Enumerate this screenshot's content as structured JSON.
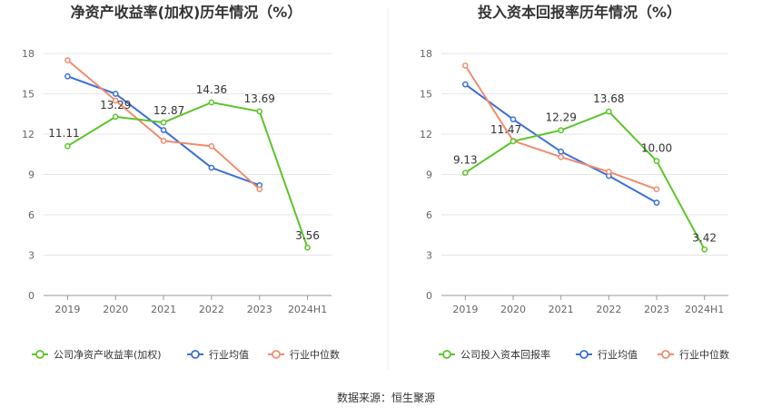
{
  "source": "数据来源：恒生聚源",
  "colors": {
    "company": "#5cc42a",
    "avg": "#3b6fd8",
    "median": "#f08c6e"
  },
  "chart_data": [
    {
      "type": "line",
      "title": "净资产收益率(加权)历年情况（%）",
      "categories": [
        "2019",
        "2020",
        "2021",
        "2022",
        "2023",
        "2024H1"
      ],
      "ylim": [
        0,
        18
      ],
      "yticks": [
        0,
        3,
        6,
        9,
        12,
        15,
        18
      ],
      "grid": true,
      "legend_position": "bottom",
      "series": [
        {
          "name": "公司净资产收益率(加权)",
          "key": "company",
          "values": [
            11.11,
            13.29,
            12.87,
            14.36,
            13.69,
            3.56
          ],
          "labels": [
            "11.11",
            "13.29",
            "12.87",
            "14.36",
            "13.69",
            "3.56"
          ]
        },
        {
          "name": "行业均值",
          "key": "avg",
          "values": [
            16.3,
            15.0,
            12.3,
            9.5,
            8.2,
            null
          ]
        },
        {
          "name": "行业中位数",
          "key": "median",
          "values": [
            17.5,
            14.5,
            11.5,
            11.1,
            7.9,
            null
          ]
        }
      ]
    },
    {
      "type": "line",
      "title": "投入资本回报率历年情况（%）",
      "categories": [
        "2019",
        "2020",
        "2021",
        "2022",
        "2023",
        "2024H1"
      ],
      "ylim": [
        0,
        18
      ],
      "yticks": [
        0,
        3,
        6,
        9,
        12,
        15,
        18
      ],
      "grid": true,
      "legend_position": "bottom",
      "series": [
        {
          "name": "公司投入资本回报率",
          "key": "company",
          "values": [
            9.13,
            11.47,
            12.29,
            13.68,
            10.0,
            3.42
          ],
          "labels": [
            "9.13",
            "11.47",
            "12.29",
            "13.68",
            "10.00",
            "3.42"
          ]
        },
        {
          "name": "行业均值",
          "key": "avg",
          "values": [
            15.7,
            13.1,
            10.7,
            8.9,
            6.9,
            null
          ]
        },
        {
          "name": "行业中位数",
          "key": "median",
          "values": [
            17.1,
            11.5,
            10.3,
            9.2,
            7.9,
            null
          ]
        }
      ]
    }
  ]
}
